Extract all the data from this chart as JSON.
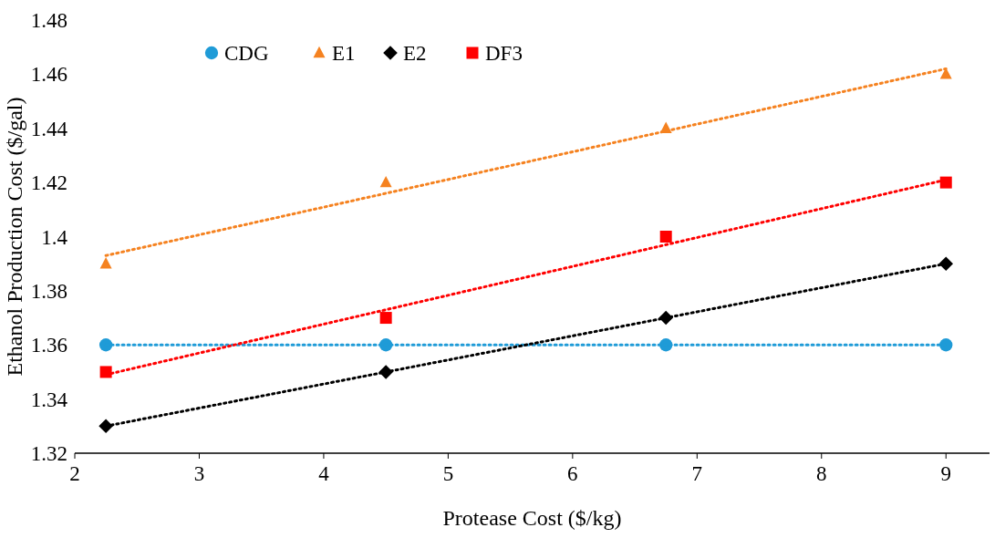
{
  "chart_data": {
    "type": "scatter",
    "xlabel": "Protease Cost ($/kg)",
    "ylabel": "Ethanol Production Cost ($/gal)",
    "xlim": [
      2,
      9.35
    ],
    "xticks": [
      2,
      3,
      4,
      5,
      6,
      7,
      8,
      9
    ],
    "ylim": [
      1.32,
      1.48
    ],
    "yticks": [
      1.32,
      1.34,
      1.36,
      1.38,
      {
        "value": 1.4,
        "label": "1.4"
      },
      1.42,
      1.44,
      1.46,
      1.48
    ],
    "x": [
      2.25,
      4.5,
      6.75,
      9
    ],
    "grid": false,
    "legend": "top left",
    "series": [
      {
        "name": "CDG",
        "color": "#1f9bd7",
        "marker": "circle",
        "values": [
          1.36,
          1.36,
          1.36,
          1.36
        ]
      },
      {
        "name": "E1",
        "color": "#f58220",
        "marker": "triangle",
        "values": [
          1.39,
          1.42,
          1.44,
          1.46
        ]
      },
      {
        "name": "E2",
        "color": "#000000",
        "marker": "diamond",
        "values": [
          1.33,
          1.35,
          1.37,
          1.39
        ]
      },
      {
        "name": "DF3",
        "color": "#ff0000",
        "marker": "square",
        "values": [
          1.35,
          1.37,
          1.4,
          1.42
        ]
      },
      {
        "type": "line",
        "color": "#1f9bd7",
        "marker": "none",
        "line_style": "dotted",
        "values": [
          1.36,
          1.36,
          1.36,
          1.36
        ]
      },
      {
        "type": "line",
        "color": "#f58220",
        "marker": "none",
        "line_style": "dotted",
        "values": [
          1.393,
          1.416,
          1.439,
          1.462
        ]
      },
      {
        "type": "line",
        "color": "#000000",
        "marker": "none",
        "line_style": "dotted",
        "values": [
          1.33,
          1.35,
          1.37,
          1.39
        ]
      },
      {
        "type": "line",
        "color": "#ff0000",
        "marker": "none",
        "line_style": "dotted",
        "values": [
          1.349,
          1.373,
          1.397,
          1.421
        ]
      }
    ]
  }
}
